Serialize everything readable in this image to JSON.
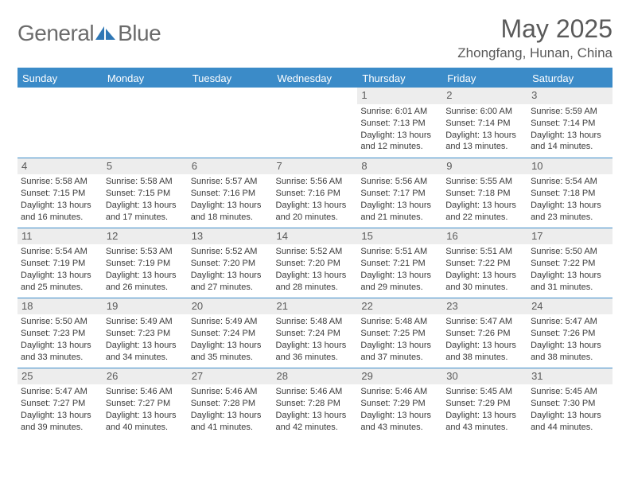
{
  "brand": {
    "general": "General",
    "blue": "Blue"
  },
  "title": "May 2025",
  "location": "Zhongfang, Hunan, China",
  "colors": {
    "header_bg": "#3b8bc8",
    "header_text": "#ffffff",
    "daynum_bg": "#ededed",
    "border": "#3b8bc8",
    "text": "#3a3a3a",
    "title_text": "#5a5a5a",
    "logo_text": "#6b6b6b"
  },
  "weekdays": [
    "Sunday",
    "Monday",
    "Tuesday",
    "Wednesday",
    "Thursday",
    "Friday",
    "Saturday"
  ],
  "weeks": [
    [
      null,
      null,
      null,
      null,
      {
        "n": "1",
        "sr": "6:01 AM",
        "ss": "7:13 PM",
        "dl": "13 hours and 12 minutes."
      },
      {
        "n": "2",
        "sr": "6:00 AM",
        "ss": "7:14 PM",
        "dl": "13 hours and 13 minutes."
      },
      {
        "n": "3",
        "sr": "5:59 AM",
        "ss": "7:14 PM",
        "dl": "13 hours and 14 minutes."
      }
    ],
    [
      {
        "n": "4",
        "sr": "5:58 AM",
        "ss": "7:15 PM",
        "dl": "13 hours and 16 minutes."
      },
      {
        "n": "5",
        "sr": "5:58 AM",
        "ss": "7:15 PM",
        "dl": "13 hours and 17 minutes."
      },
      {
        "n": "6",
        "sr": "5:57 AM",
        "ss": "7:16 PM",
        "dl": "13 hours and 18 minutes."
      },
      {
        "n": "7",
        "sr": "5:56 AM",
        "ss": "7:16 PM",
        "dl": "13 hours and 20 minutes."
      },
      {
        "n": "8",
        "sr": "5:56 AM",
        "ss": "7:17 PM",
        "dl": "13 hours and 21 minutes."
      },
      {
        "n": "9",
        "sr": "5:55 AM",
        "ss": "7:18 PM",
        "dl": "13 hours and 22 minutes."
      },
      {
        "n": "10",
        "sr": "5:54 AM",
        "ss": "7:18 PM",
        "dl": "13 hours and 23 minutes."
      }
    ],
    [
      {
        "n": "11",
        "sr": "5:54 AM",
        "ss": "7:19 PM",
        "dl": "13 hours and 25 minutes."
      },
      {
        "n": "12",
        "sr": "5:53 AM",
        "ss": "7:19 PM",
        "dl": "13 hours and 26 minutes."
      },
      {
        "n": "13",
        "sr": "5:52 AM",
        "ss": "7:20 PM",
        "dl": "13 hours and 27 minutes."
      },
      {
        "n": "14",
        "sr": "5:52 AM",
        "ss": "7:20 PM",
        "dl": "13 hours and 28 minutes."
      },
      {
        "n": "15",
        "sr": "5:51 AM",
        "ss": "7:21 PM",
        "dl": "13 hours and 29 minutes."
      },
      {
        "n": "16",
        "sr": "5:51 AM",
        "ss": "7:22 PM",
        "dl": "13 hours and 30 minutes."
      },
      {
        "n": "17",
        "sr": "5:50 AM",
        "ss": "7:22 PM",
        "dl": "13 hours and 31 minutes."
      }
    ],
    [
      {
        "n": "18",
        "sr": "5:50 AM",
        "ss": "7:23 PM",
        "dl": "13 hours and 33 minutes."
      },
      {
        "n": "19",
        "sr": "5:49 AM",
        "ss": "7:23 PM",
        "dl": "13 hours and 34 minutes."
      },
      {
        "n": "20",
        "sr": "5:49 AM",
        "ss": "7:24 PM",
        "dl": "13 hours and 35 minutes."
      },
      {
        "n": "21",
        "sr": "5:48 AM",
        "ss": "7:24 PM",
        "dl": "13 hours and 36 minutes."
      },
      {
        "n": "22",
        "sr": "5:48 AM",
        "ss": "7:25 PM",
        "dl": "13 hours and 37 minutes."
      },
      {
        "n": "23",
        "sr": "5:47 AM",
        "ss": "7:26 PM",
        "dl": "13 hours and 38 minutes."
      },
      {
        "n": "24",
        "sr": "5:47 AM",
        "ss": "7:26 PM",
        "dl": "13 hours and 38 minutes."
      }
    ],
    [
      {
        "n": "25",
        "sr": "5:47 AM",
        "ss": "7:27 PM",
        "dl": "13 hours and 39 minutes."
      },
      {
        "n": "26",
        "sr": "5:46 AM",
        "ss": "7:27 PM",
        "dl": "13 hours and 40 minutes."
      },
      {
        "n": "27",
        "sr": "5:46 AM",
        "ss": "7:28 PM",
        "dl": "13 hours and 41 minutes."
      },
      {
        "n": "28",
        "sr": "5:46 AM",
        "ss": "7:28 PM",
        "dl": "13 hours and 42 minutes."
      },
      {
        "n": "29",
        "sr": "5:46 AM",
        "ss": "7:29 PM",
        "dl": "13 hours and 43 minutes."
      },
      {
        "n": "30",
        "sr": "5:45 AM",
        "ss": "7:29 PM",
        "dl": "13 hours and 43 minutes."
      },
      {
        "n": "31",
        "sr": "5:45 AM",
        "ss": "7:30 PM",
        "dl": "13 hours and 44 minutes."
      }
    ]
  ],
  "labels": {
    "sunrise": "Sunrise: ",
    "sunset": "Sunset: ",
    "daylight": "Daylight: "
  }
}
